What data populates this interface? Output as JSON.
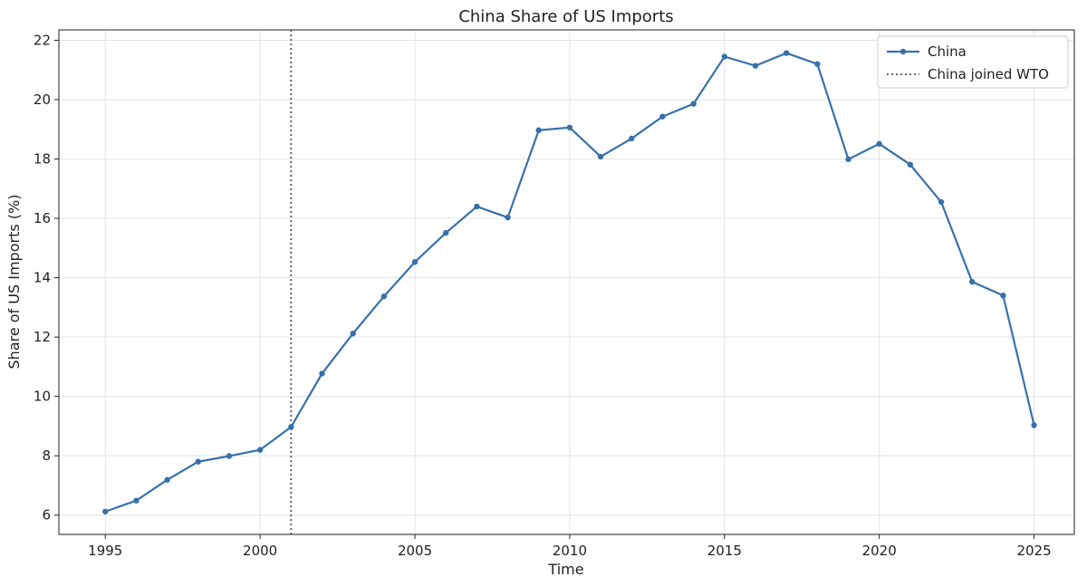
{
  "chart_data": {
    "type": "line",
    "title": "China Share of US Imports",
    "xlabel": "Time",
    "ylabel": "Share of US Imports (%)",
    "xlim": [
      1993.5,
      2026.3
    ],
    "ylim": [
      5.35,
      22.35
    ],
    "xticks": [
      1995,
      2000,
      2005,
      2010,
      2015,
      2020,
      2025
    ],
    "yticks": [
      6,
      8,
      10,
      12,
      14,
      16,
      18,
      20,
      22
    ],
    "grid": true,
    "legend_position": "top-right",
    "series": [
      {
        "name": "China",
        "color": "#3771aa",
        "marker": "circle",
        "x": [
          1995,
          1996,
          1997,
          1998,
          1999,
          2000,
          2001,
          2002,
          2003,
          2004,
          2005,
          2006,
          2007,
          2008,
          2009,
          2010,
          2011,
          2012,
          2013,
          2014,
          2015,
          2016,
          2017,
          2018,
          2019,
          2020,
          2021,
          2022,
          2023,
          2024,
          2025
        ],
        "values": [
          6.12,
          6.49,
          7.19,
          7.8,
          7.99,
          8.2,
          8.97,
          10.77,
          12.12,
          13.37,
          14.53,
          15.51,
          16.4,
          16.03,
          18.97,
          19.06,
          18.08,
          18.69,
          19.43,
          19.86,
          21.45,
          21.14,
          21.57,
          21.2,
          17.99,
          18.51,
          17.81,
          16.55,
          13.86,
          13.4,
          9.03
        ]
      }
    ],
    "annotations": [
      {
        "type": "vline",
        "x": 2001,
        "label": "China joined WTO",
        "style": "dotted",
        "color": "#555555"
      }
    ]
  }
}
